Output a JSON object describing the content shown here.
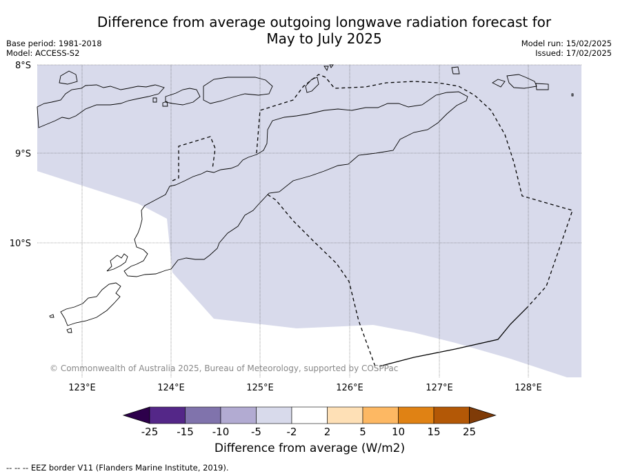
{
  "title_line1": "Difference from average outgoing longwave radiation forecast for",
  "title_line2": "May to July 2025",
  "base_period": "Base period: 1981-2018",
  "model": "Model: ACCESS-S2",
  "model_run": "Model run: 15/02/2025",
  "issued": "Issued: 17/02/2025",
  "lat_labels": [
    "8°S",
    "9°S",
    "10°S"
  ],
  "lon_labels": [
    "123°E",
    "124°E",
    "125°E",
    "126°E",
    "127°E",
    "128°E"
  ],
  "credit": "© Commonwealth of Australia 2025, Bureau of Meteorology, supported by COSPPac",
  "colorbar": {
    "title": "Difference from average (W/m2)",
    "tick_labels": [
      "-25",
      "-15",
      "-10",
      "-5",
      "-2",
      "2",
      "5",
      "10",
      "15",
      "25"
    ],
    "colors": [
      "#2d004b",
      "#542788",
      "#8073ac",
      "#b2abd2",
      "#d8daeb",
      "#ffffff",
      "#fee0b6",
      "#fdb863",
      "#e08214",
      "#b35806",
      "#7f3b08"
    ]
  },
  "map": {
    "shaded_category": "-5 to -2",
    "shaded_color": "#d8daeb"
  },
  "legend_note": "--  --  -- EEZ border V11 (Flanders Marine Institute, 2019)."
}
